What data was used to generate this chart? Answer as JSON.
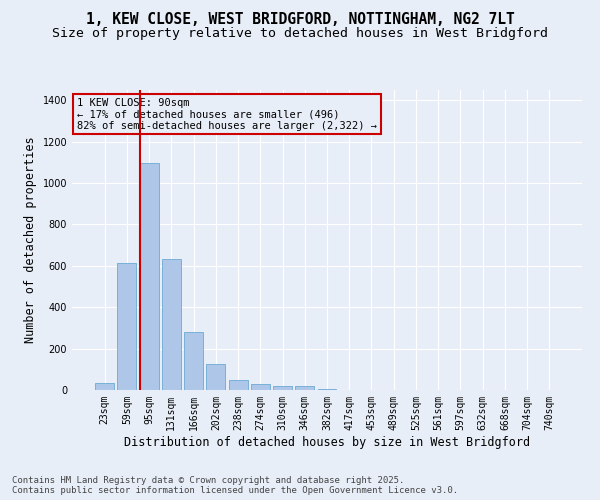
{
  "title_line1": "1, KEW CLOSE, WEST BRIDGFORD, NOTTINGHAM, NG2 7LT",
  "title_line2": "Size of property relative to detached houses in West Bridgford",
  "xlabel": "Distribution of detached houses by size in West Bridgford",
  "ylabel": "Number of detached properties",
  "categories": [
    "23sqm",
    "59sqm",
    "95sqm",
    "131sqm",
    "166sqm",
    "202sqm",
    "238sqm",
    "274sqm",
    "310sqm",
    "346sqm",
    "382sqm",
    "417sqm",
    "453sqm",
    "489sqm",
    "525sqm",
    "561sqm",
    "597sqm",
    "632sqm",
    "668sqm",
    "704sqm",
    "740sqm"
  ],
  "values": [
    35,
    615,
    1095,
    635,
    280,
    125,
    50,
    30,
    20,
    20,
    5,
    0,
    0,
    0,
    0,
    0,
    0,
    0,
    0,
    0,
    0
  ],
  "bar_color": "#aec6e8",
  "bar_edge_color": "#6aaad4",
  "vline_color": "#cc0000",
  "annotation_text": "1 KEW CLOSE: 90sqm\n← 17% of detached houses are smaller (496)\n82% of semi-detached houses are larger (2,322) →",
  "annotation_box_color": "#cc0000",
  "ylim": [
    0,
    1450
  ],
  "yticks": [
    0,
    200,
    400,
    600,
    800,
    1000,
    1200,
    1400
  ],
  "background_color": "#e8eef8",
  "grid_color": "#ffffff",
  "footer_line1": "Contains HM Land Registry data © Crown copyright and database right 2025.",
  "footer_line2": "Contains public sector information licensed under the Open Government Licence v3.0.",
  "title_fontsize": 10.5,
  "subtitle_fontsize": 9.5,
  "axis_label_fontsize": 8.5,
  "tick_fontsize": 7,
  "annotation_fontsize": 7.5,
  "footer_fontsize": 6.5
}
